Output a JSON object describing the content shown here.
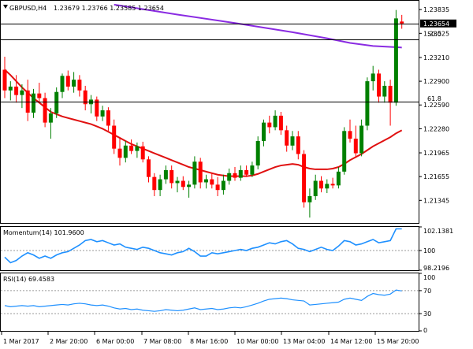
{
  "header": {
    "symbol": "GBPUSD,H4",
    "ohlc": "1.23679 1.23766 1.23585 1.23654",
    "triangle_icon": "down-triangle-icon"
  },
  "momentum_label": "Momentum(14) 101.9600",
  "rsi_label": "RSI(14) 69.4583",
  "fib_labels": {
    "fib50": "50.0",
    "fib618": "61.8"
  },
  "price_axis_labels": [
    "1.23835",
    "1.23525",
    "1.23210",
    "1.22900",
    "1.22590",
    "1.22280",
    "1.21965",
    "1.21655",
    "1.21345"
  ],
  "current_price_label": "1.23654",
  "momentum_axis_labels": [
    "102.1381",
    "100",
    "98.2196"
  ],
  "rsi_axis_labels": [
    "100",
    "70",
    "30",
    "0"
  ],
  "x_axis_labels": [
    "1 Mar 2017",
    "2 Mar 20:00",
    "6 Mar 00:00",
    "7 Mar 08:00",
    "8 Mar 16:00",
    "10 Mar 00:00",
    "13 Mar 04:00",
    "14 Mar 12:00",
    "15 Mar 20:00"
  ],
  "chart_data": [
    {
      "type": "candlestick",
      "symbol": "GBPUSD",
      "timeframe": "H4",
      "ylim": [
        1.2105,
        1.2395
      ],
      "y_ticks": [
        1.23835,
        1.23525,
        1.2321,
        1.229,
        1.2259,
        1.2228,
        1.21965,
        1.21655,
        1.21345
      ],
      "horizontal_levels": [
        {
          "label": "50.0",
          "value": 1.2345
        },
        {
          "label": "61.8",
          "value": 1.2263
        },
        {
          "label": "",
          "value": 1.23654
        }
      ],
      "colors": {
        "bull": "#008000",
        "bear": "#ff0000",
        "ma_short": "#e01010",
        "ma_long": "#8a2be2"
      },
      "candles": [
        {
          "o": 1.2305,
          "h": 1.2322,
          "l": 1.2268,
          "c": 1.2278
        },
        {
          "o": 1.2278,
          "h": 1.229,
          "l": 1.2265,
          "c": 1.2283
        },
        {
          "o": 1.2283,
          "h": 1.2298,
          "l": 1.2262,
          "c": 1.2272
        },
        {
          "o": 1.2272,
          "h": 1.2286,
          "l": 1.2255,
          "c": 1.2278
        },
        {
          "o": 1.2278,
          "h": 1.2292,
          "l": 1.2238,
          "c": 1.2249
        },
        {
          "o": 1.2249,
          "h": 1.228,
          "l": 1.2242,
          "c": 1.2274
        },
        {
          "o": 1.2274,
          "h": 1.2288,
          "l": 1.2262,
          "c": 1.2268
        },
        {
          "o": 1.2268,
          "h": 1.2275,
          "l": 1.223,
          "c": 1.2236
        },
        {
          "o": 1.2236,
          "h": 1.2255,
          "l": 1.2215,
          "c": 1.2248
        },
        {
          "o": 1.2248,
          "h": 1.2282,
          "l": 1.2242,
          "c": 1.2276
        },
        {
          "o": 1.2276,
          "h": 1.23,
          "l": 1.2268,
          "c": 1.2297
        },
        {
          "o": 1.2297,
          "h": 1.2304,
          "l": 1.2278,
          "c": 1.2283
        },
        {
          "o": 1.2283,
          "h": 1.2302,
          "l": 1.2275,
          "c": 1.2292
        },
        {
          "o": 1.2292,
          "h": 1.2298,
          "l": 1.227,
          "c": 1.2278
        },
        {
          "o": 1.2278,
          "h": 1.2284,
          "l": 1.2252,
          "c": 1.226
        },
        {
          "o": 1.226,
          "h": 1.2272,
          "l": 1.2248,
          "c": 1.2266
        },
        {
          "o": 1.2266,
          "h": 1.227,
          "l": 1.2238,
          "c": 1.2244
        },
        {
          "o": 1.2244,
          "h": 1.2258,
          "l": 1.2238,
          "c": 1.2252
        },
        {
          "o": 1.2252,
          "h": 1.2256,
          "l": 1.2225,
          "c": 1.2232
        },
        {
          "o": 1.2232,
          "h": 1.224,
          "l": 1.2195,
          "c": 1.2202
        },
        {
          "o": 1.2202,
          "h": 1.2215,
          "l": 1.218,
          "c": 1.219
        },
        {
          "o": 1.219,
          "h": 1.2212,
          "l": 1.2184,
          "c": 1.2206
        },
        {
          "o": 1.2206,
          "h": 1.2214,
          "l": 1.2195,
          "c": 1.2199
        },
        {
          "o": 1.2199,
          "h": 1.221,
          "l": 1.219,
          "c": 1.2205
        },
        {
          "o": 1.2205,
          "h": 1.2211,
          "l": 1.2184,
          "c": 1.2188
        },
        {
          "o": 1.2188,
          "h": 1.2192,
          "l": 1.2158,
          "c": 1.2165
        },
        {
          "o": 1.2165,
          "h": 1.217,
          "l": 1.214,
          "c": 1.2148
        },
        {
          "o": 1.2148,
          "h": 1.2168,
          "l": 1.214,
          "c": 1.2162
        },
        {
          "o": 1.2162,
          "h": 1.218,
          "l": 1.2156,
          "c": 1.2174
        },
        {
          "o": 1.2174,
          "h": 1.218,
          "l": 1.215,
          "c": 1.2157
        },
        {
          "o": 1.2157,
          "h": 1.2165,
          "l": 1.2145,
          "c": 1.216
        },
        {
          "o": 1.216,
          "h": 1.2166,
          "l": 1.2148,
          "c": 1.2152
        },
        {
          "o": 1.2152,
          "h": 1.216,
          "l": 1.2138,
          "c": 1.2155
        },
        {
          "o": 1.2155,
          "h": 1.2192,
          "l": 1.215,
          "c": 1.2185
        },
        {
          "o": 1.2185,
          "h": 1.219,
          "l": 1.215,
          "c": 1.2158
        },
        {
          "o": 1.2158,
          "h": 1.2168,
          "l": 1.215,
          "c": 1.2162
        },
        {
          "o": 1.2162,
          "h": 1.217,
          "l": 1.215,
          "c": 1.2155
        },
        {
          "o": 1.2155,
          "h": 1.2165,
          "l": 1.214,
          "c": 1.2148
        },
        {
          "o": 1.2148,
          "h": 1.2168,
          "l": 1.2142,
          "c": 1.216
        },
        {
          "o": 1.216,
          "h": 1.2176,
          "l": 1.2155,
          "c": 1.217
        },
        {
          "o": 1.217,
          "h": 1.2178,
          "l": 1.216,
          "c": 1.2164
        },
        {
          "o": 1.2164,
          "h": 1.218,
          "l": 1.216,
          "c": 1.2174
        },
        {
          "o": 1.2174,
          "h": 1.218,
          "l": 1.2165,
          "c": 1.2168
        },
        {
          "o": 1.2168,
          "h": 1.2185,
          "l": 1.2165,
          "c": 1.218
        },
        {
          "o": 1.218,
          "h": 1.2218,
          "l": 1.2175,
          "c": 1.2212
        },
        {
          "o": 1.2212,
          "h": 1.224,
          "l": 1.2205,
          "c": 1.2236
        },
        {
          "o": 1.2236,
          "h": 1.2245,
          "l": 1.2222,
          "c": 1.223
        },
        {
          "o": 1.223,
          "h": 1.2252,
          "l": 1.2226,
          "c": 1.2245
        },
        {
          "o": 1.2245,
          "h": 1.225,
          "l": 1.222,
          "c": 1.2226
        },
        {
          "o": 1.2226,
          "h": 1.2232,
          "l": 1.2198,
          "c": 1.2206
        },
        {
          "o": 1.2206,
          "h": 1.2225,
          "l": 1.22,
          "c": 1.2218
        },
        {
          "o": 1.2218,
          "h": 1.2225,
          "l": 1.2188,
          "c": 1.2195
        },
        {
          "o": 1.2195,
          "h": 1.22,
          "l": 1.2125,
          "c": 1.2132
        },
        {
          "o": 1.2132,
          "h": 1.215,
          "l": 1.2112,
          "c": 1.214
        },
        {
          "o": 1.214,
          "h": 1.2168,
          "l": 1.2135,
          "c": 1.216
        },
        {
          "o": 1.216,
          "h": 1.2166,
          "l": 1.2145,
          "c": 1.215
        },
        {
          "o": 1.215,
          "h": 1.2162,
          "l": 1.2144,
          "c": 1.2156
        },
        {
          "o": 1.2156,
          "h": 1.2164,
          "l": 1.215,
          "c": 1.2154
        },
        {
          "o": 1.2154,
          "h": 1.2178,
          "l": 1.215,
          "c": 1.2172
        },
        {
          "o": 1.2172,
          "h": 1.223,
          "l": 1.2168,
          "c": 1.2225
        },
        {
          "o": 1.2225,
          "h": 1.224,
          "l": 1.221,
          "c": 1.2215
        },
        {
          "o": 1.2215,
          "h": 1.2232,
          "l": 1.219,
          "c": 1.2196
        },
        {
          "o": 1.2196,
          "h": 1.224,
          "l": 1.2192,
          "c": 1.2232
        },
        {
          "o": 1.2232,
          "h": 1.2295,
          "l": 1.2226,
          "c": 1.229
        },
        {
          "o": 1.229,
          "h": 1.231,
          "l": 1.2278,
          "c": 1.23
        },
        {
          "o": 1.23,
          "h": 1.2305,
          "l": 1.2262,
          "c": 1.227
        },
        {
          "o": 1.227,
          "h": 1.229,
          "l": 1.2262,
          "c": 1.2284
        },
        {
          "o": 1.2284,
          "h": 1.2292,
          "l": 1.2232,
          "c": 1.2262
        },
        {
          "o": 1.2262,
          "h": 1.2383,
          "l": 1.2258,
          "c": 1.2372
        },
        {
          "o": 1.23679,
          "h": 1.23766,
          "l": 1.23585,
          "c": 1.23654
        }
      ],
      "ma_short": [
        1.2305,
        1.2298,
        1.229,
        1.2282,
        1.2275,
        1.2268,
        1.2262,
        1.2256,
        1.225,
        1.2247,
        1.2244,
        1.2242,
        1.224,
        1.2238,
        1.2236,
        1.2234,
        1.2231,
        1.2228,
        1.2224,
        1.222,
        1.2216,
        1.2212,
        1.2208,
        1.2205,
        1.2202,
        1.2199,
        1.2196,
        1.2193,
        1.219,
        1.2187,
        1.2184,
        1.2181,
        1.2178,
        1.2176,
        1.2174,
        1.2172,
        1.217,
        1.2168,
        1.2167,
        1.2166,
        1.2166,
        1.2166,
        1.2166,
        1.2167,
        1.2169,
        1.2172,
        1.2175,
        1.2178,
        1.218,
        1.2181,
        1.2182,
        1.2181,
        1.2178,
        1.2176,
        1.2175,
        1.2175,
        1.2175,
        1.2176,
        1.2178,
        1.2182,
        1.2187,
        1.2191,
        1.2195,
        1.22,
        1.2205,
        1.2209,
        1.2213,
        1.2217,
        1.2222,
        1.2226
      ],
      "ma_long": [
        {
          "i": 19,
          "v": 1.239
        },
        {
          "i": 30,
          "v": 1.2377
        },
        {
          "i": 40,
          "v": 1.2366
        },
        {
          "i": 50,
          "v": 1.2354
        },
        {
          "i": 56,
          "v": 1.2346
        },
        {
          "i": 60,
          "v": 1.234
        },
        {
          "i": 64,
          "v": 1.2336
        },
        {
          "i": 69,
          "v": 1.2334
        }
      ]
    },
    {
      "type": "line",
      "title": "Momentum(14) 101.9600",
      "ylim": [
        98.2196,
        102.1381
      ],
      "reference_level": 100,
      "color": "#1e90ff",
      "values": [
        99.4,
        98.9,
        99.1,
        99.5,
        99.8,
        99.6,
        99.3,
        99.5,
        99.3,
        99.6,
        99.8,
        99.9,
        100.2,
        100.5,
        100.9,
        101.0,
        100.8,
        100.9,
        100.7,
        100.5,
        100.6,
        100.3,
        100.2,
        100.1,
        100.3,
        100.2,
        100.0,
        99.8,
        99.7,
        99.6,
        99.8,
        99.9,
        100.2,
        99.9,
        99.5,
        99.5,
        99.8,
        99.7,
        99.8,
        99.9,
        100.0,
        100.1,
        100.0,
        100.2,
        100.3,
        100.5,
        100.7,
        100.6,
        100.8,
        100.9,
        100.6,
        100.2,
        100.1,
        99.9,
        100.1,
        100.3,
        100.1,
        100.0,
        100.4,
        100.9,
        100.8,
        100.5,
        100.6,
        100.8,
        101.0,
        100.7,
        100.8,
        100.9,
        101.96,
        101.96
      ]
    },
    {
      "type": "line",
      "title": "RSI(14) 69.4583",
      "ylim": [
        0,
        100
      ],
      "levels": [
        70,
        30
      ],
      "color": "#1e90ff",
      "values": [
        44,
        42,
        43,
        44,
        43,
        44,
        42,
        43,
        44,
        45,
        46,
        45,
        47,
        48,
        47,
        45,
        44,
        45,
        43,
        40,
        38,
        39,
        37,
        38,
        36,
        35,
        34,
        35,
        37,
        36,
        35,
        36,
        38,
        40,
        37,
        38,
        39,
        37,
        38,
        40,
        41,
        40,
        42,
        45,
        48,
        52,
        55,
        56,
        57,
        56,
        54,
        53,
        52,
        45,
        46,
        47,
        48,
        49,
        50,
        55,
        57,
        55,
        53,
        60,
        65,
        63,
        62,
        64,
        71,
        69.46
      ]
    }
  ]
}
